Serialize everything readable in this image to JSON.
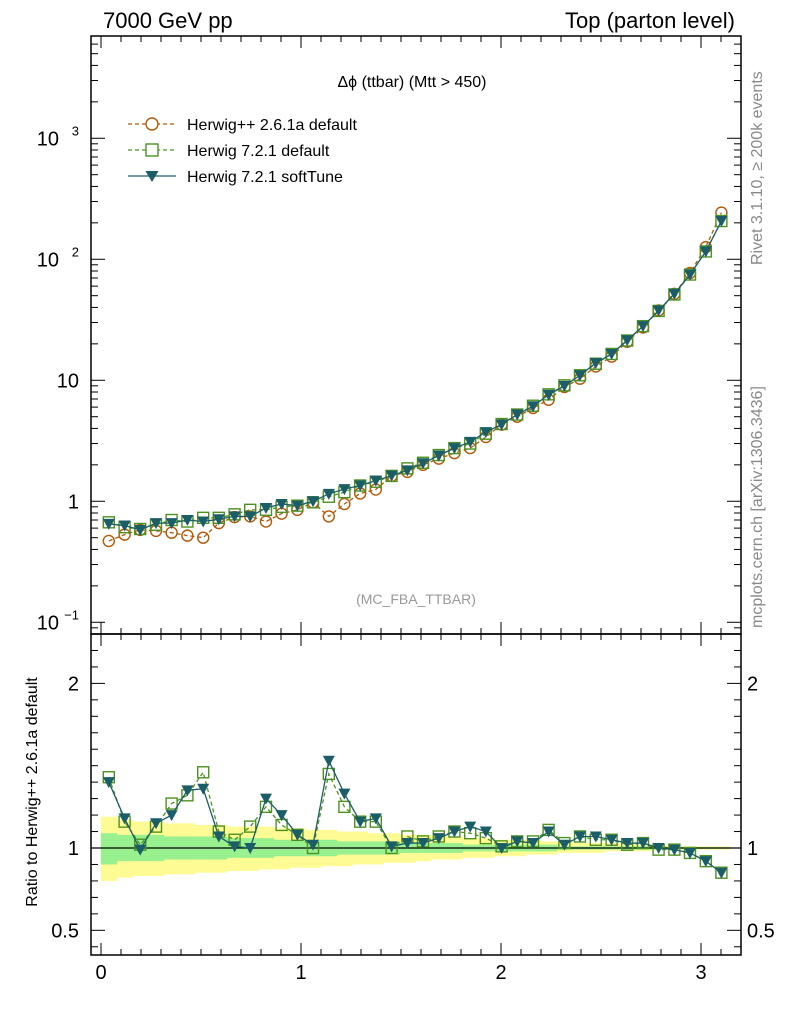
{
  "header": {
    "left": "7000 GeV pp",
    "right": "Top (parton level)",
    "side_top": "Rivet 3.1.10, ≥ 200k events",
    "side_bottom": "mcplots.cern.ch [arXiv:1306.3436]"
  },
  "chart_data": {
    "type": "line",
    "title": "Δϕ (ttbar) (Mtt > 450)",
    "watermark": "(MC_FBA_TTBAR)",
    "xlabel": "",
    "ylabel": "",
    "ratio_ylabel": "Ratio to Herwig++ 2.6.1a default",
    "xlim": [
      -0.05,
      3.2
    ],
    "ylim": [
      0.08,
      7000
    ],
    "ylog": true,
    "ratio_ylim": [
      0.35,
      2.3
    ],
    "legend_position": "top-left",
    "main_yticks": [
      {
        "value": 0.1,
        "base": "10",
        "exp": "−1"
      },
      {
        "value": 1,
        "base": "1",
        "exp": ""
      },
      {
        "value": 10,
        "base": "10",
        "exp": ""
      },
      {
        "value": 100,
        "base": "10",
        "exp": "2"
      },
      {
        "value": 1000,
        "base": "10",
        "exp": "3"
      }
    ],
    "ratio_yticks": [
      {
        "value": 0.5,
        "label": "0.5"
      },
      {
        "value": 1,
        "label": "1"
      },
      {
        "value": 2,
        "label": "2"
      }
    ],
    "xticks": [
      {
        "value": 0,
        "label": "0"
      },
      {
        "value": 1,
        "label": "1"
      },
      {
        "value": 2,
        "label": "2"
      },
      {
        "value": 3,
        "label": "3"
      }
    ],
    "x": [
      0.039,
      0.118,
      0.196,
      0.275,
      0.353,
      0.432,
      0.511,
      0.589,
      0.668,
      0.746,
      0.825,
      0.903,
      0.982,
      1.06,
      1.139,
      1.217,
      1.296,
      1.374,
      1.453,
      1.532,
      1.61,
      1.689,
      1.767,
      1.846,
      1.924,
      2.003,
      2.081,
      2.16,
      2.238,
      2.317,
      2.395,
      2.474,
      2.553,
      2.631,
      2.71,
      2.788,
      2.867,
      2.945,
      3.024,
      3.102
    ],
    "series": [
      {
        "name": "Herwig++ 2.6.1a default",
        "color": "#b35806",
        "marker": "open-circle",
        "dash": true,
        "values": [
          0.47,
          0.53,
          0.58,
          0.57,
          0.55,
          0.52,
          0.5,
          0.66,
          0.74,
          0.75,
          0.68,
          0.79,
          0.85,
          0.98,
          0.75,
          0.95,
          1.16,
          1.25,
          1.62,
          1.75,
          2.0,
          2.25,
          2.5,
          2.75,
          3.4,
          4.3,
          5.0,
          5.9,
          6.9,
          8.8,
          10.3,
          13.0,
          15.7,
          20.8,
          27.3,
          37.8,
          51.8,
          77.0,
          126,
          243
        ]
      },
      {
        "name": "Herwig 7.2.1 default",
        "color": "#4d9221",
        "marker": "open-square",
        "dash": true,
        "values": [
          0.67,
          0.61,
          0.59,
          0.64,
          0.7,
          0.68,
          0.73,
          0.73,
          0.78,
          0.85,
          0.85,
          0.9,
          0.92,
          0.98,
          1.09,
          1.19,
          1.35,
          1.45,
          1.62,
          1.87,
          2.08,
          2.41,
          2.75,
          3.0,
          3.62,
          4.35,
          5.21,
          6.16,
          7.65,
          9.08,
          11.0,
          13.7,
          16.5,
          21.3,
          28.0,
          37.4,
          51.2,
          74.8,
          116,
          207
        ]
      },
      {
        "name": "Herwig 7.2.1 softTune",
        "color": "#1c5e68",
        "marker": "filled-triangle-down",
        "dash": false,
        "values": [
          0.65,
          0.63,
          0.58,
          0.66,
          0.66,
          0.7,
          0.68,
          0.71,
          0.75,
          0.75,
          0.88,
          0.95,
          0.92,
          1.0,
          1.15,
          1.26,
          1.35,
          1.48,
          1.63,
          1.8,
          2.06,
          2.39,
          2.75,
          3.1,
          3.73,
          4.31,
          5.21,
          6.1,
          7.6,
          8.98,
          11.0,
          13.9,
          16.5,
          21.4,
          28.0,
          37.7,
          51.8,
          74.7,
          116,
          207
        ]
      }
    ],
    "ratio_series": [
      {
        "name": "Herwig 7.2.1 default",
        "values": [
          1.43,
          1.16,
          1.02,
          1.13,
          1.27,
          1.32,
          1.46,
          1.1,
          1.05,
          1.13,
          1.25,
          1.14,
          1.08,
          1.0,
          1.45,
          1.25,
          1.16,
          1.16,
          1.0,
          1.07,
          1.04,
          1.07,
          1.1,
          1.09,
          1.06,
          1.01,
          1.04,
          1.04,
          1.11,
          1.03,
          1.07,
          1.05,
          1.05,
          1.02,
          1.03,
          0.99,
          0.99,
          0.97,
          0.92,
          0.85
        ]
      },
      {
        "name": "Herwig 7.2.1 softTune",
        "values": [
          1.4,
          1.18,
          0.99,
          1.15,
          1.2,
          1.35,
          1.36,
          1.07,
          1.01,
          1.0,
          1.3,
          1.2,
          1.08,
          1.02,
          1.53,
          1.33,
          1.16,
          1.18,
          1.01,
          1.03,
          1.03,
          1.06,
          1.1,
          1.13,
          1.1,
          1.0,
          1.04,
          1.03,
          1.1,
          1.02,
          1.07,
          1.07,
          1.05,
          1.03,
          1.03,
          1.0,
          0.99,
          0.97,
          0.92,
          0.85
        ]
      }
    ],
    "band_color_inner": "#99f08f",
    "band_color_outer": "#fffb94",
    "band_inner": {
      "low": [
        0.9,
        0.92,
        0.92,
        0.92,
        0.93,
        0.93,
        0.93,
        0.93,
        0.94,
        0.94,
        0.94,
        0.95,
        0.95,
        0.95,
        0.95,
        0.96,
        0.96,
        0.96,
        0.96,
        0.97,
        0.97,
        0.97,
        0.97,
        0.98,
        0.98,
        0.98,
        0.98,
        0.98,
        0.98,
        0.99,
        0.99,
        0.99,
        0.99,
        0.99,
        0.99,
        0.99,
        0.995,
        0.995,
        0.995,
        0.995
      ],
      "high": [
        1.09,
        1.08,
        1.08,
        1.08,
        1.07,
        1.07,
        1.07,
        1.07,
        1.06,
        1.06,
        1.06,
        1.05,
        1.05,
        1.05,
        1.05,
        1.04,
        1.04,
        1.04,
        1.04,
        1.03,
        1.03,
        1.03,
        1.03,
        1.02,
        1.02,
        1.02,
        1.02,
        1.02,
        1.02,
        1.01,
        1.01,
        1.01,
        1.01,
        1.01,
        1.01,
        1.01,
        1.005,
        1.005,
        1.005,
        1.005
      ]
    },
    "band_outer": {
      "low": [
        0.8,
        0.82,
        0.83,
        0.83,
        0.84,
        0.84,
        0.85,
        0.85,
        0.86,
        0.86,
        0.87,
        0.87,
        0.88,
        0.88,
        0.89,
        0.89,
        0.9,
        0.9,
        0.91,
        0.91,
        0.92,
        0.93,
        0.93,
        0.94,
        0.94,
        0.95,
        0.95,
        0.96,
        0.96,
        0.97,
        0.97,
        0.97,
        0.98,
        0.98,
        0.98,
        0.99,
        0.99,
        0.99,
        0.99,
        0.99
      ],
      "high": [
        1.19,
        1.17,
        1.16,
        1.16,
        1.15,
        1.15,
        1.14,
        1.14,
        1.13,
        1.13,
        1.13,
        1.12,
        1.12,
        1.11,
        1.11,
        1.1,
        1.1,
        1.09,
        1.09,
        1.08,
        1.08,
        1.07,
        1.07,
        1.06,
        1.06,
        1.05,
        1.05,
        1.05,
        1.04,
        1.04,
        1.03,
        1.03,
        1.03,
        1.02,
        1.02,
        1.02,
        1.01,
        1.01,
        1.01,
        1.01
      ]
    }
  }
}
